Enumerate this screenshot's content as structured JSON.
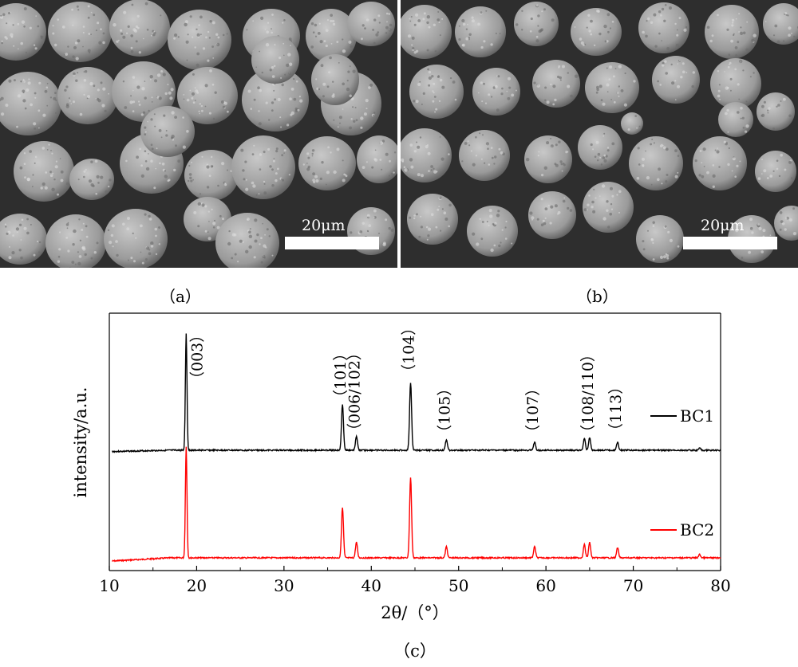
{
  "panels": {
    "a": {
      "label": "（a）",
      "scale_bar": "20μm"
    },
    "b": {
      "label": "（b）",
      "scale_bar": "20μm"
    },
    "c": {
      "label": "（c）"
    }
  },
  "chart_data": {
    "type": "line",
    "xlabel": "2θ/（°）",
    "ylabel": "intensity/a.u.",
    "xlim": [
      10,
      80
    ],
    "xticks": [
      10,
      20,
      30,
      40,
      50,
      60,
      70,
      80
    ],
    "grid": false,
    "legend_placement": "right",
    "peaks": [
      {
        "x": 18.8,
        "label": "（003）",
        "bc1": 1.0,
        "bc2": 1.0
      },
      {
        "x": 36.7,
        "label": "（101）",
        "bc1": 0.39,
        "bc2": 0.45
      },
      {
        "x": 38.3,
        "label": "（006/102）",
        "bc1": 0.12,
        "bc2": 0.14
      },
      {
        "x": 44.5,
        "label": "（104）",
        "bc1": 0.58,
        "bc2": 0.72
      },
      {
        "x": 48.6,
        "label": "（105）",
        "bc1": 0.09,
        "bc2": 0.1
      },
      {
        "x": 58.7,
        "label": "（107）",
        "bc1": 0.07,
        "bc2": 0.1
      },
      {
        "x": 64.4,
        "label": "",
        "bc1": 0.1,
        "bc2": 0.12
      },
      {
        "x": 65.0,
        "label": "（108/110）",
        "bc1": 0.11,
        "bc2": 0.14
      },
      {
        "x": 68.2,
        "label": "（113）",
        "bc1": 0.07,
        "bc2": 0.09
      },
      {
        "x": 77.6,
        "label": "",
        "bc1": 0.02,
        "bc2": 0.03
      }
    ],
    "series": [
      {
        "name": "BC1",
        "color": "#000000"
      },
      {
        "name": "BC2",
        "color": "#ff0000"
      }
    ]
  }
}
